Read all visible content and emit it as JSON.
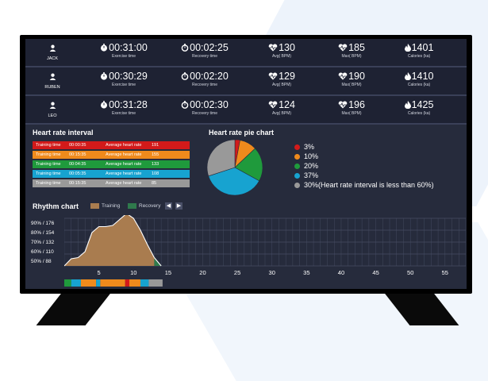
{
  "users": [
    {
      "name": "JACK",
      "exercise_time": "00:31:00",
      "recovery_time": "00:02:25",
      "avg_bpm": "130",
      "max_bpm": "185",
      "calories": "1401"
    },
    {
      "name": "RUBEN",
      "exercise_time": "00:30:29",
      "recovery_time": "00:02:20",
      "avg_bpm": "129",
      "max_bpm": "190",
      "calories": "1410"
    },
    {
      "name": "LEO",
      "exercise_time": "00:31:28",
      "recovery_time": "00:02:30",
      "avg_bpm": "124",
      "max_bpm": "196",
      "calories": "1425"
    }
  ],
  "labels": {
    "exercise_time": "Exercise time",
    "recovery_time": "Recovery time",
    "avg": "Avg( BPM)",
    "max": "Max( BPM)",
    "calories": "Calories (ka)"
  },
  "heart_rate_interval": {
    "title": "Heart rate interval",
    "training_label": "Training time",
    "avg_label": "Average heart rate",
    "rows": [
      {
        "time": "00:00:35",
        "avg": "191",
        "color": "#d21a1a"
      },
      {
        "time": "00:15:35",
        "avg": "155",
        "color": "#ef8a1c"
      },
      {
        "time": "00:04:35",
        "avg": "133",
        "color": "#1f9a3c"
      },
      {
        "time": "00:05:35",
        "avg": "108",
        "color": "#17a3d0"
      },
      {
        "time": "00:15:35",
        "avg": "85",
        "color": "#999999"
      }
    ]
  },
  "pie": {
    "title": "Heart rate pie chart",
    "slices": [
      {
        "label": "3%",
        "value": 3,
        "color": "#d21a1a"
      },
      {
        "label": "10%",
        "value": 10,
        "color": "#ef8a1c"
      },
      {
        "label": "20%",
        "value": 20,
        "color": "#1f9a3c"
      },
      {
        "label": "37%",
        "value": 37,
        "color": "#17a3d0"
      },
      {
        "label": "30%(Heart rate interval is less than 60%)",
        "value": 30,
        "color": "#999999"
      }
    ]
  },
  "rhythm": {
    "title": "Rhythm chart",
    "legend_training": "Training",
    "legend_recovery": "Recovery",
    "training_color": "#a97c4f",
    "recovery_color": "#2f7a4c",
    "y_ticks": [
      "90% / 176",
      "80% / 154",
      "70% / 132",
      "60% / 110",
      "50% / 88"
    ],
    "x_ticks": [
      "5",
      "10",
      "15",
      "20",
      "25",
      "30",
      "35",
      "40",
      "45",
      "50",
      "55"
    ],
    "bar_segments": [
      {
        "color": "#1f9a3c",
        "w": 1.0
      },
      {
        "color": "#17a3d0",
        "w": 1.4
      },
      {
        "color": "#ef8a1c",
        "w": 2.2
      },
      {
        "color": "#17a3d0",
        "w": 0.6
      },
      {
        "color": "#ef8a1c",
        "w": 3.6
      },
      {
        "color": "#d21a1a",
        "w": 0.6
      },
      {
        "color": "#ef8a1c",
        "w": 1.6
      },
      {
        "color": "#17a3d0",
        "w": 1.2
      },
      {
        "color": "#999999",
        "w": 2.0
      }
    ]
  },
  "chart_data": {
    "type": "area",
    "x": [
      0,
      1,
      2,
      3,
      4,
      5,
      6,
      7,
      8,
      9,
      10,
      11,
      12,
      13,
      14
    ],
    "series": [
      {
        "name": "Training",
        "values": [
          50,
          56,
          57,
          62,
          78,
          83,
          83,
          84,
          89,
          94,
          90,
          80,
          68,
          57,
          null
        ]
      },
      {
        "name": "Recovery",
        "values": [
          null,
          null,
          null,
          null,
          null,
          null,
          null,
          null,
          null,
          null,
          null,
          null,
          null,
          57,
          50
        ]
      }
    ],
    "ylim": [
      50,
      90
    ],
    "xlim": [
      0,
      58
    ]
  }
}
